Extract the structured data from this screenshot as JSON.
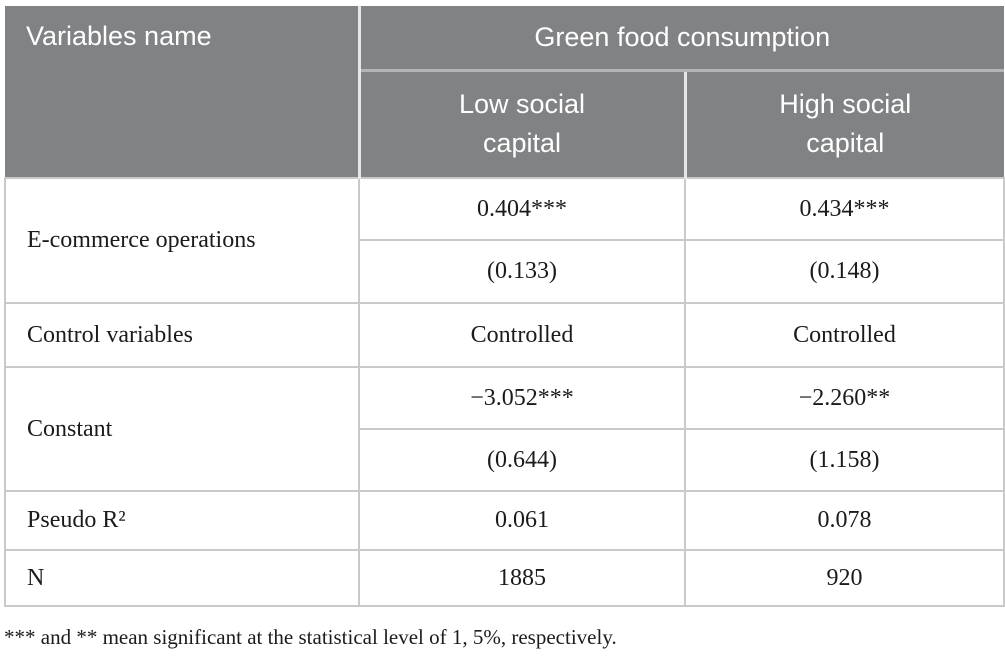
{
  "colors": {
    "header_bg": "#808284",
    "header_text": "#ffffff",
    "body_text": "#1b1b1b",
    "border_light": "#c9c9c9",
    "border_outer": "#b9b9b9",
    "header_divider_vertical": "#e6e6e6",
    "header_divider_horizontal": "#b2b4b5",
    "page_bg": "#ffffff"
  },
  "table": {
    "header": {
      "variables_col": "Variables name",
      "group": "Green food consumption",
      "subcols": [
        "Low social capital",
        "High social capital"
      ]
    },
    "body": [
      {
        "label": "E-commerce operations",
        "sub": [
          {
            "low": "0.404***",
            "high": "0.434***"
          },
          {
            "low": "(0.133)",
            "high": "(0.148)"
          }
        ]
      },
      {
        "label": "Control variables",
        "sub": [
          {
            "low": "Controlled",
            "high": "Controlled"
          }
        ]
      },
      {
        "label": "Constant",
        "sub": [
          {
            "low": "−3.052***",
            "high": "−2.260**"
          },
          {
            "low": "(0.644)",
            "high": "(1.158)"
          }
        ]
      },
      {
        "label": "Pseudo R²",
        "sub": [
          {
            "low": "0.061",
            "high": "0.078"
          }
        ]
      },
      {
        "label": "N",
        "sub": [
          {
            "low": "1885",
            "high": "920"
          }
        ]
      }
    ]
  },
  "footnote": "*** and ** mean significant at the statistical level of 1, 5%, respectively."
}
